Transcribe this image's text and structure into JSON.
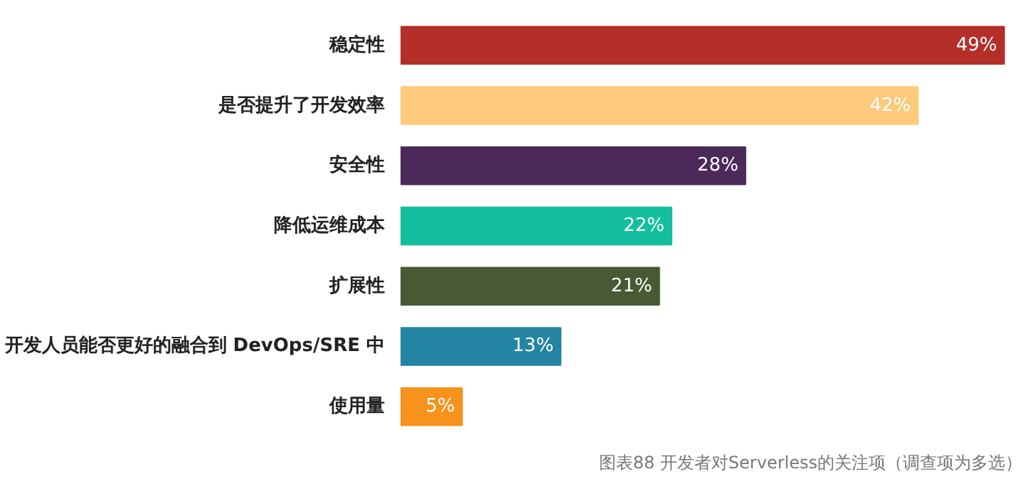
{
  "chart_data": {
    "type": "bar",
    "orientation": "horizontal",
    "categories": [
      "稳定性",
      "是否提升了开发效率",
      "安全性",
      "降低运维成本",
      "扩展性",
      "开发人员能否更好的融合到 DevOps/SRE 中",
      "使用量"
    ],
    "values": [
      49,
      42,
      28,
      22,
      21,
      13,
      5
    ],
    "colors": [
      "#b52f29",
      "#fdc97a",
      "#4b2a5a",
      "#13bf9e",
      "#485934",
      "#2484a3",
      "#f7921d"
    ],
    "value_labels": [
      "49%",
      "42%",
      "28%",
      "22%",
      "21%",
      "13%",
      "5%"
    ],
    "annotations": [
      "图表88 开发者对Serverless的关注项（调查项为多选）"
    ],
    "tick_labels": "y",
    "grid": false
  }
}
